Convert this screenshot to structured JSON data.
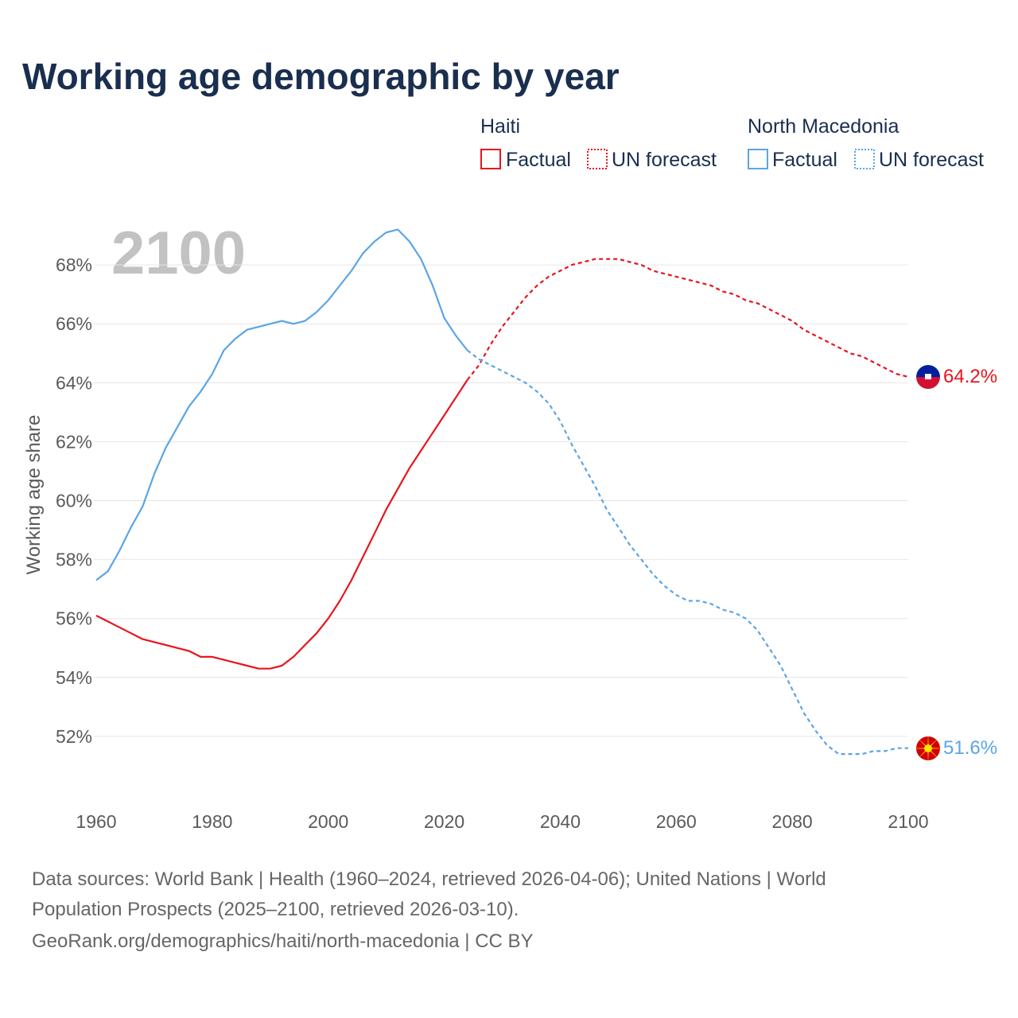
{
  "title": "Working age demographic by year",
  "year_display": "2100",
  "legend": {
    "countries": [
      {
        "name": "Haiti",
        "factual_label": "Factual",
        "forecast_label": "UN forecast",
        "color": "#e8141e"
      },
      {
        "name": "North Macedonia",
        "factual_label": "Factual",
        "forecast_label": "UN forecast",
        "color": "#5aa5e6"
      }
    ]
  },
  "flags": {
    "haiti": {
      "top": "#00209f",
      "bottom": "#d21034",
      "emblem": "#ffffff"
    },
    "north_macedonia": {
      "bg": "#d20000",
      "sun": "#ffe600"
    }
  },
  "source_lines": [
    "Data sources: World Bank | Health (1960–2024, retrieved 2026-04-06); United Nations | World",
    "Population Prospects (2025–2100, retrieved 2026-03-10).",
    "GeoRank.org/demographics/haiti/north-macedonia | CC BY"
  ],
  "chart_data": {
    "type": "line",
    "title": "Working age demographic by year",
    "xlabel": "",
    "ylabel": "Working age share",
    "xlim": [
      1960,
      2100
    ],
    "ylim": [
      50,
      70
    ],
    "x_ticks": [
      1960,
      1980,
      2000,
      2020,
      2040,
      2060,
      2080,
      2100
    ],
    "y_ticks": [
      52,
      54,
      56,
      58,
      60,
      62,
      64,
      66,
      68
    ],
    "y_tick_labels": [
      "52%",
      "54%",
      "56%",
      "58%",
      "60%",
      "62%",
      "64%",
      "66%",
      "68%"
    ],
    "x_tick_labels": [
      "1960",
      "1980",
      "2000",
      "2020",
      "2040",
      "2060",
      "2080",
      "2100"
    ],
    "factual_range": [
      1960,
      2024
    ],
    "forecast_range": [
      2024,
      2100
    ],
    "series": [
      {
        "name": "Haiti",
        "color": "#e8141e",
        "end_label": "64.2%",
        "points": [
          [
            1960,
            56.1
          ],
          [
            1962,
            55.9
          ],
          [
            1964,
            55.7
          ],
          [
            1966,
            55.5
          ],
          [
            1968,
            55.3
          ],
          [
            1970,
            55.2
          ],
          [
            1972,
            55.1
          ],
          [
            1974,
            55.0
          ],
          [
            1976,
            54.9
          ],
          [
            1978,
            54.7
          ],
          [
            1980,
            54.7
          ],
          [
            1982,
            54.6
          ],
          [
            1984,
            54.5
          ],
          [
            1986,
            54.4
          ],
          [
            1988,
            54.3
          ],
          [
            1990,
            54.3
          ],
          [
            1992,
            54.4
          ],
          [
            1994,
            54.7
          ],
          [
            1996,
            55.1
          ],
          [
            1998,
            55.5
          ],
          [
            2000,
            56.0
          ],
          [
            2002,
            56.6
          ],
          [
            2004,
            57.3
          ],
          [
            2006,
            58.1
          ],
          [
            2008,
            58.9
          ],
          [
            2010,
            59.7
          ],
          [
            2012,
            60.4
          ],
          [
            2014,
            61.1
          ],
          [
            2016,
            61.7
          ],
          [
            2018,
            62.3
          ],
          [
            2020,
            62.9
          ],
          [
            2022,
            63.5
          ],
          [
            2024,
            64.1
          ],
          [
            2026,
            64.6
          ],
          [
            2028,
            65.3
          ],
          [
            2030,
            65.9
          ],
          [
            2032,
            66.4
          ],
          [
            2034,
            66.9
          ],
          [
            2036,
            67.3
          ],
          [
            2038,
            67.6
          ],
          [
            2040,
            67.8
          ],
          [
            2042,
            68.0
          ],
          [
            2044,
            68.1
          ],
          [
            2046,
            68.2
          ],
          [
            2048,
            68.2
          ],
          [
            2050,
            68.2
          ],
          [
            2052,
            68.1
          ],
          [
            2054,
            68.0
          ],
          [
            2056,
            67.8
          ],
          [
            2058,
            67.7
          ],
          [
            2060,
            67.6
          ],
          [
            2062,
            67.5
          ],
          [
            2064,
            67.4
          ],
          [
            2066,
            67.3
          ],
          [
            2068,
            67.1
          ],
          [
            2070,
            67.0
          ],
          [
            2072,
            66.8
          ],
          [
            2074,
            66.7
          ],
          [
            2076,
            66.5
          ],
          [
            2078,
            66.3
          ],
          [
            2080,
            66.1
          ],
          [
            2082,
            65.8
          ],
          [
            2084,
            65.6
          ],
          [
            2086,
            65.4
          ],
          [
            2088,
            65.2
          ],
          [
            2090,
            65.0
          ],
          [
            2092,
            64.9
          ],
          [
            2094,
            64.7
          ],
          [
            2096,
            64.5
          ],
          [
            2098,
            64.3
          ],
          [
            2100,
            64.2
          ]
        ]
      },
      {
        "name": "North Macedonia",
        "color": "#5aa5e6",
        "end_label": "51.6%",
        "points": [
          [
            1960,
            57.3
          ],
          [
            1962,
            57.6
          ],
          [
            1964,
            58.3
          ],
          [
            1966,
            59.1
          ],
          [
            1968,
            59.8
          ],
          [
            1970,
            60.9
          ],
          [
            1972,
            61.8
          ],
          [
            1974,
            62.5
          ],
          [
            1976,
            63.2
          ],
          [
            1978,
            63.7
          ],
          [
            1980,
            64.3
          ],
          [
            1982,
            65.1
          ],
          [
            1984,
            65.5
          ],
          [
            1986,
            65.8
          ],
          [
            1988,
            65.9
          ],
          [
            1990,
            66.0
          ],
          [
            1992,
            66.1
          ],
          [
            1994,
            66.0
          ],
          [
            1996,
            66.1
          ],
          [
            1998,
            66.4
          ],
          [
            2000,
            66.8
          ],
          [
            2002,
            67.3
          ],
          [
            2004,
            67.8
          ],
          [
            2006,
            68.4
          ],
          [
            2008,
            68.8
          ],
          [
            2010,
            69.1
          ],
          [
            2012,
            69.2
          ],
          [
            2014,
            68.8
          ],
          [
            2016,
            68.2
          ],
          [
            2018,
            67.3
          ],
          [
            2020,
            66.2
          ],
          [
            2022,
            65.6
          ],
          [
            2024,
            65.1
          ],
          [
            2026,
            64.8
          ],
          [
            2028,
            64.6
          ],
          [
            2030,
            64.4
          ],
          [
            2032,
            64.2
          ],
          [
            2034,
            64.0
          ],
          [
            2036,
            63.7
          ],
          [
            2038,
            63.3
          ],
          [
            2040,
            62.7
          ],
          [
            2042,
            61.9
          ],
          [
            2044,
            61.2
          ],
          [
            2046,
            60.5
          ],
          [
            2048,
            59.7
          ],
          [
            2050,
            59.1
          ],
          [
            2052,
            58.5
          ],
          [
            2054,
            58.0
          ],
          [
            2056,
            57.5
          ],
          [
            2058,
            57.1
          ],
          [
            2060,
            56.8
          ],
          [
            2062,
            56.6
          ],
          [
            2064,
            56.6
          ],
          [
            2066,
            56.5
          ],
          [
            2068,
            56.3
          ],
          [
            2070,
            56.2
          ],
          [
            2072,
            56.0
          ],
          [
            2074,
            55.6
          ],
          [
            2076,
            55.0
          ],
          [
            2078,
            54.4
          ],
          [
            2080,
            53.6
          ],
          [
            2082,
            52.8
          ],
          [
            2084,
            52.2
          ],
          [
            2086,
            51.7
          ],
          [
            2088,
            51.4
          ],
          [
            2090,
            51.4
          ],
          [
            2092,
            51.4
          ],
          [
            2094,
            51.5
          ],
          [
            2096,
            51.5
          ],
          [
            2098,
            51.6
          ],
          [
            2100,
            51.6
          ]
        ]
      }
    ]
  }
}
